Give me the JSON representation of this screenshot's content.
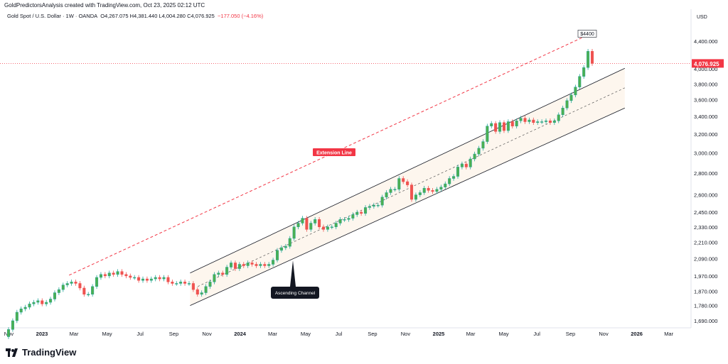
{
  "header": {
    "attribution": "GoldPredictorsAnalysis created with TradingView.com, Oct 23, 2025 02:12 UTC"
  },
  "symbol_line": {
    "name": "Gold Spot / U.S. Dollar · 1W · OANDA",
    "ohlc": "O4,267.075  H4,381.440  L4,004.280  C4,076.925",
    "change": "−177.050 (−4.16%)"
  },
  "brand": {
    "name": "TradingView",
    "logo_icon": "tradingview-logo-icon"
  },
  "chart_data": {
    "type": "candlestick",
    "currency_label": "USD",
    "last_price_label": "4,076.925",
    "colors": {
      "up": "#26a69a",
      "up_fill": "#4caf50",
      "down": "#ef5350",
      "extension": "#f23645",
      "channel_fill": "#fdf6ee",
      "channel_line": "#131722"
    },
    "y_ticks": [
      "4,400.000",
      "4,000.000",
      "3,800.000",
      "3,600.000",
      "3,400.000",
      "3,200.000",
      "3,000.000",
      "2,800.000",
      "2,600.000",
      "2,450.000",
      "2,330.000",
      "2,210.000",
      "2,090.000",
      "1,970.000",
      "1,870.000",
      "1,780.000",
      "1,690.000"
    ],
    "y_tick_values": [
      4400,
      4000,
      3800,
      3600,
      3400,
      3200,
      3000,
      2800,
      2600,
      2450,
      2330,
      2210,
      2090,
      1970,
      1870,
      1780,
      1690
    ],
    "x_ticks": [
      {
        "label": "Nov",
        "bold": false,
        "date": "2022-11-01"
      },
      {
        "label": "2023",
        "bold": true,
        "date": "2023-01-01"
      },
      {
        "label": "Mar",
        "bold": false,
        "date": "2023-03-01"
      },
      {
        "label": "May",
        "bold": false,
        "date": "2023-05-01"
      },
      {
        "label": "Jul",
        "bold": false,
        "date": "2023-07-01"
      },
      {
        "label": "Sep",
        "bold": false,
        "date": "2023-09-01"
      },
      {
        "label": "Nov",
        "bold": false,
        "date": "2023-11-01"
      },
      {
        "label": "2024",
        "bold": true,
        "date": "2024-01-01"
      },
      {
        "label": "Mar",
        "bold": false,
        "date": "2024-03-01"
      },
      {
        "label": "May",
        "bold": false,
        "date": "2024-05-01"
      },
      {
        "label": "Jul",
        "bold": false,
        "date": "2024-07-01"
      },
      {
        "label": "Sep",
        "bold": false,
        "date": "2024-09-01"
      },
      {
        "label": "Nov",
        "bold": false,
        "date": "2024-11-01"
      },
      {
        "label": "2025",
        "bold": true,
        "date": "2025-01-01"
      },
      {
        "label": "Mar",
        "bold": false,
        "date": "2025-03-01"
      },
      {
        "label": "May",
        "bold": false,
        "date": "2025-05-01"
      },
      {
        "label": "Jul",
        "bold": false,
        "date": "2025-07-01"
      },
      {
        "label": "Sep",
        "bold": false,
        "date": "2025-09-01"
      },
      {
        "label": "Nov",
        "bold": false,
        "date": "2025-11-01"
      },
      {
        "label": "2026",
        "bold": true,
        "date": "2026-01-01"
      },
      {
        "label": "Mar",
        "bold": false,
        "date": "2026-03-01"
      }
    ],
    "candles_close": [
      1640,
      1690,
      1740,
      1760,
      1770,
      1790,
      1800,
      1810,
      1790,
      1800,
      1820,
      1860,
      1880,
      1910,
      1920,
      1930,
      1920,
      1890,
      1850,
      1850,
      1900,
      1960,
      1980,
      1970,
      1990,
      1980,
      2000,
      1980,
      1970,
      1960,
      1960,
      1940,
      1950,
      1940,
      1950,
      1960,
      1950,
      1960,
      1930,
      1920,
      1920,
      1930,
      1920,
      1920,
      1880,
      1850,
      1860,
      1900,
      1930,
      1980,
      1990,
      1980,
      2030,
      2060,
      2020,
      2050,
      2040,
      2060,
      2050,
      2040,
      2050,
      2040,
      2050,
      2080,
      2150,
      2170,
      2180,
      2240,
      2330,
      2360,
      2400,
      2310,
      2360,
      2390,
      2330,
      2310,
      2330,
      2330,
      2360,
      2390,
      2390,
      2400,
      2430,
      2450,
      2440,
      2490,
      2500,
      2510,
      2510,
      2580,
      2620,
      2650,
      2650,
      2750,
      2720,
      2690,
      2560,
      2600,
      2620,
      2660,
      2640,
      2630,
      2650,
      2670,
      2700,
      2750,
      2770,
      2860,
      2890,
      2860,
      2940,
      2990,
      3050,
      3120,
      3290,
      3320,
      3230,
      3330,
      3240,
      3340,
      3290,
      3350,
      3380,
      3340,
      3360,
      3330,
      3340,
      3340,
      3350,
      3330,
      3350,
      3420,
      3500,
      3590,
      3660,
      3760,
      3900,
      4020,
      4250,
      4076.925
    ],
    "annotations": [
      {
        "label": "$4400",
        "style": "callout"
      },
      {
        "label": "Extension Line",
        "style": "tag"
      },
      {
        "label": "Ascending Channel",
        "style": "pointer-tag"
      }
    ],
    "drawings": {
      "extension_line": [
        {
          "date": "2023-02-20",
          "value": 1975
        },
        {
          "date": "2025-10-20",
          "value": 4560
        }
      ],
      "channel_upper": [
        {
          "date": "2023-10-01",
          "value": 1990
        },
        {
          "date": "2025-12-10",
          "value": 4010
        }
      ],
      "channel_mid": [
        {
          "date": "2023-10-15",
          "value": 1900
        },
        {
          "date": "2025-12-10",
          "value": 3750
        }
      ],
      "channel_lower": [
        {
          "date": "2023-10-01",
          "value": 1780
        },
        {
          "date": "2025-12-10",
          "value": 3500
        }
      ],
      "last_price_line": 4076.925
    }
  }
}
